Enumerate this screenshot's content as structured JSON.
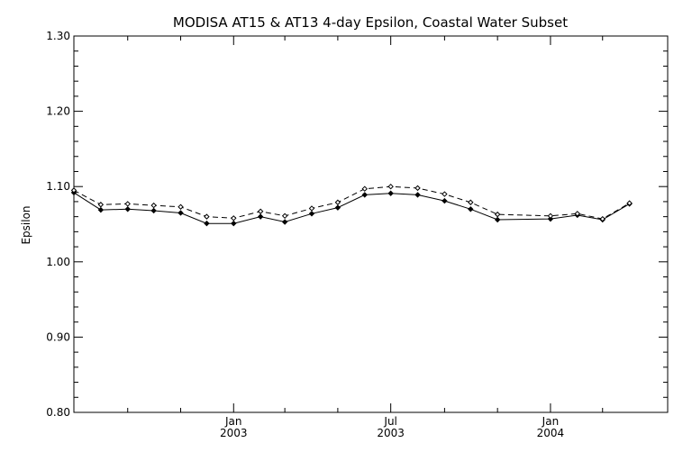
{
  "chart_data": {
    "type": "line",
    "title": "MODISA AT15 & AT13 4-day Epsilon, Coastal Water Subset",
    "xlabel": "",
    "ylabel": "Epsilon",
    "ylim": [
      0.8,
      1.3
    ],
    "xlim": [
      "2002-07-01",
      "2004-05-15"
    ],
    "y_ticks": [
      "0.80",
      "0.90",
      "1.00",
      "1.10",
      "1.20",
      "1.30"
    ],
    "x_ticks": [
      {
        "date": "2003-01-01",
        "label": "Jan",
        "year": "2003"
      },
      {
        "date": "2003-07-01",
        "label": "Jul",
        "year": "2003"
      },
      {
        "date": "2004-01-01",
        "label": "Jan",
        "year": "2004"
      }
    ],
    "x_minor_ticks": [
      "2002-09-01",
      "2002-11-01",
      "2003-03-01",
      "2003-05-01",
      "2003-09-01",
      "2003-11-01",
      "2004-03-01"
    ],
    "grid": false,
    "series": [
      {
        "style": "solid",
        "color": "#000000",
        "points": [
          {
            "x": "2002-07-01",
            "y": 1.092
          },
          {
            "x": "2002-08-01",
            "y": 1.069
          },
          {
            "x": "2002-09-01",
            "y": 1.07
          },
          {
            "x": "2002-10-01",
            "y": 1.068
          },
          {
            "x": "2002-11-01",
            "y": 1.065
          },
          {
            "x": "2002-12-01",
            "y": 1.051
          },
          {
            "x": "2003-01-01",
            "y": 1.051
          },
          {
            "x": "2003-02-01",
            "y": 1.06
          },
          {
            "x": "2003-03-01",
            "y": 1.053
          },
          {
            "x": "2003-04-01",
            "y": 1.064
          },
          {
            "x": "2003-05-01",
            "y": 1.072
          },
          {
            "x": "2003-06-01",
            "y": 1.089
          },
          {
            "x": "2003-07-01",
            "y": 1.091
          },
          {
            "x": "2003-08-01",
            "y": 1.089
          },
          {
            "x": "2003-09-01",
            "y": 1.081
          },
          {
            "x": "2003-10-01",
            "y": 1.07
          },
          {
            "x": "2003-11-01",
            "y": 1.056
          },
          {
            "x": "2004-01-01",
            "y": 1.057
          },
          {
            "x": "2004-02-01",
            "y": 1.062
          },
          {
            "x": "2004-03-01",
            "y": 1.056
          },
          {
            "x": "2004-04-01",
            "y": 1.077
          }
        ]
      },
      {
        "style": "dashed",
        "color": "#000000",
        "points": [
          {
            "x": "2002-07-01",
            "y": 1.095
          },
          {
            "x": "2002-08-01",
            "y": 1.076
          },
          {
            "x": "2002-09-01",
            "y": 1.077
          },
          {
            "x": "2002-10-01",
            "y": 1.075
          },
          {
            "x": "2002-11-01",
            "y": 1.073
          },
          {
            "x": "2002-12-01",
            "y": 1.06
          },
          {
            "x": "2003-01-01",
            "y": 1.058
          },
          {
            "x": "2003-02-01",
            "y": 1.067
          },
          {
            "x": "2003-03-01",
            "y": 1.061
          },
          {
            "x": "2003-04-01",
            "y": 1.071
          },
          {
            "x": "2003-05-01",
            "y": 1.079
          },
          {
            "x": "2003-06-01",
            "y": 1.097
          },
          {
            "x": "2003-07-01",
            "y": 1.1
          },
          {
            "x": "2003-08-01",
            "y": 1.098
          },
          {
            "x": "2003-09-01",
            "y": 1.09
          },
          {
            "x": "2003-10-01",
            "y": 1.079
          },
          {
            "x": "2003-11-01",
            "y": 1.063
          },
          {
            "x": "2004-01-01",
            "y": 1.061
          },
          {
            "x": "2004-02-01",
            "y": 1.064
          },
          {
            "x": "2004-03-01",
            "y": 1.057
          },
          {
            "x": "2004-04-01",
            "y": 1.078
          }
        ]
      }
    ]
  }
}
